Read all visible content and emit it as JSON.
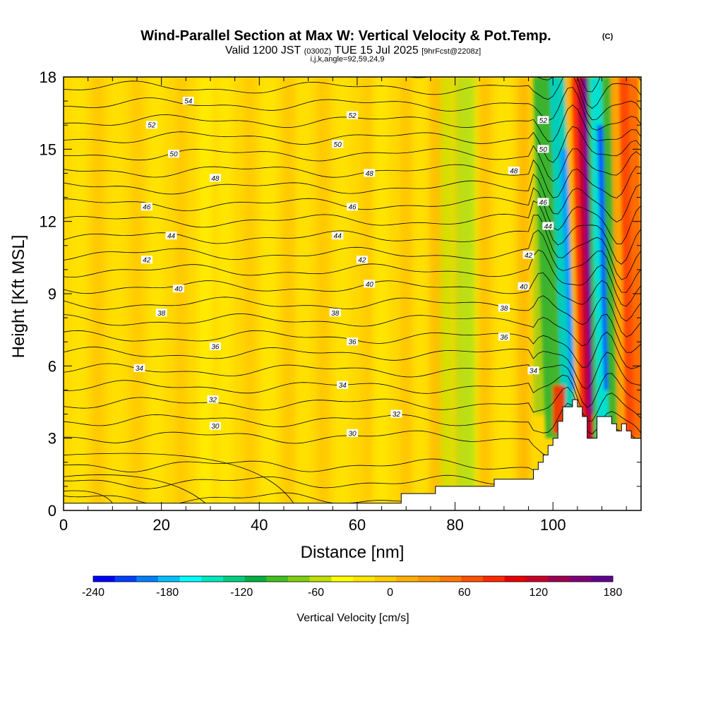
{
  "chart_data": {
    "type": "heatmap",
    "title": "Wind-Parallel Section at Max W: Vertical Velocity & Pot.Temp.",
    "title_mark": "(C)",
    "subtitle_parts": [
      "Valid 1200 JST",
      "(0300Z)",
      "TUE 15 Jul 2025",
      "[9hrFcst@2208z]"
    ],
    "subtitle_line2": "i,j,k,angle=92,59,24,9",
    "xlabel": "Distance [nm]",
    "ylabel": "Height [Kft MSL]",
    "xlim": [
      0,
      118
    ],
    "ylim": [
      0,
      18
    ],
    "x_ticks": [
      0,
      20,
      40,
      60,
      80,
      100
    ],
    "y_ticks": [
      0,
      3,
      6,
      9,
      12,
      15,
      18
    ],
    "colorbar": {
      "label": "Vertical Velocity [cm/s]",
      "ticks": [
        -240,
        -180,
        -120,
        -60,
        0,
        60,
        120,
        180
      ],
      "range": [
        -240,
        180
      ],
      "colors": [
        "#0000ff",
        "#0040ff",
        "#0080ff",
        "#00c0ff",
        "#00ffff",
        "#00e8c0",
        "#00d080",
        "#00b040",
        "#40c020",
        "#80d010",
        "#c0e000",
        "#ffff00",
        "#ffe600",
        "#ffcc00",
        "#ffb000",
        "#ff9600",
        "#ff7800",
        "#ff5000",
        "#ff2800",
        "#e80000",
        "#c80028",
        "#a00050",
        "#80007a",
        "#600090"
      ]
    },
    "theta_contour_labels": [
      {
        "text": "54",
        "x": 25.5,
        "y": 17.0
      },
      {
        "text": "52",
        "x": 18.0,
        "y": 16.0
      },
      {
        "text": "52",
        "x": 59.0,
        "y": 16.4
      },
      {
        "text": "52",
        "x": 98.0,
        "y": 16.2
      },
      {
        "text": "50",
        "x": 22.5,
        "y": 14.8
      },
      {
        "text": "50",
        "x": 56.0,
        "y": 15.2
      },
      {
        "text": "50",
        "x": 98.0,
        "y": 15.0
      },
      {
        "text": "48",
        "x": 31.0,
        "y": 13.8
      },
      {
        "text": "48",
        "x": 62.5,
        "y": 14.0
      },
      {
        "text": "48",
        "x": 92.0,
        "y": 14.1
      },
      {
        "text": "46",
        "x": 17.0,
        "y": 12.6
      },
      {
        "text": "46",
        "x": 59.0,
        "y": 12.6
      },
      {
        "text": "46",
        "x": 98.0,
        "y": 12.8
      },
      {
        "text": "44",
        "x": 22.0,
        "y": 11.4
      },
      {
        "text": "44",
        "x": 56.0,
        "y": 11.4
      },
      {
        "text": "44",
        "x": 99.0,
        "y": 11.8
      },
      {
        "text": "42",
        "x": 17.0,
        "y": 10.4
      },
      {
        "text": "42",
        "x": 61.0,
        "y": 10.4
      },
      {
        "text": "42",
        "x": 95.0,
        "y": 10.6
      },
      {
        "text": "40",
        "x": 23.5,
        "y": 9.2
      },
      {
        "text": "40",
        "x": 62.5,
        "y": 9.4
      },
      {
        "text": "40",
        "x": 94.0,
        "y": 9.3
      },
      {
        "text": "38",
        "x": 20.0,
        "y": 8.2
      },
      {
        "text": "38",
        "x": 55.5,
        "y": 8.2
      },
      {
        "text": "38",
        "x": 90.0,
        "y": 8.4
      },
      {
        "text": "36",
        "x": 31.0,
        "y": 6.8
      },
      {
        "text": "36",
        "x": 59.0,
        "y": 7.0
      },
      {
        "text": "36",
        "x": 90.0,
        "y": 7.2
      },
      {
        "text": "34",
        "x": 15.5,
        "y": 5.9
      },
      {
        "text": "34",
        "x": 57.0,
        "y": 5.2
      },
      {
        "text": "34",
        "x": 96.0,
        "y": 5.8
      },
      {
        "text": "32",
        "x": 30.5,
        "y": 4.6
      },
      {
        "text": "32",
        "x": 68.0,
        "y": 4.0
      },
      {
        "text": "30",
        "x": 31.0,
        "y": 3.5
      },
      {
        "text": "30",
        "x": 59.0,
        "y": 3.2
      }
    ],
    "terrain": [
      [
        0,
        0.3
      ],
      [
        68,
        0.3
      ],
      [
        69,
        0.7
      ],
      [
        75,
        0.7
      ],
      [
        76,
        1.0
      ],
      [
        87,
        1.0
      ],
      [
        88,
        1.3
      ],
      [
        95,
        1.3
      ],
      [
        96,
        1.7
      ],
      [
        97,
        2.0
      ],
      [
        98,
        2.3
      ],
      [
        99,
        2.7
      ],
      [
        100,
        3.0
      ],
      [
        101,
        3.7
      ],
      [
        102,
        4.3
      ],
      [
        104,
        4.6
      ],
      [
        105,
        4.3
      ],
      [
        106,
        3.9
      ],
      [
        107,
        3.0
      ],
      [
        108,
        3.0
      ],
      [
        109,
        3.9
      ],
      [
        111,
        3.9
      ],
      [
        112,
        3.6
      ],
      [
        113,
        3.3
      ],
      [
        114,
        3.6
      ],
      [
        115,
        3.3
      ],
      [
        116,
        3.0
      ],
      [
        118,
        3.0
      ]
    ]
  }
}
